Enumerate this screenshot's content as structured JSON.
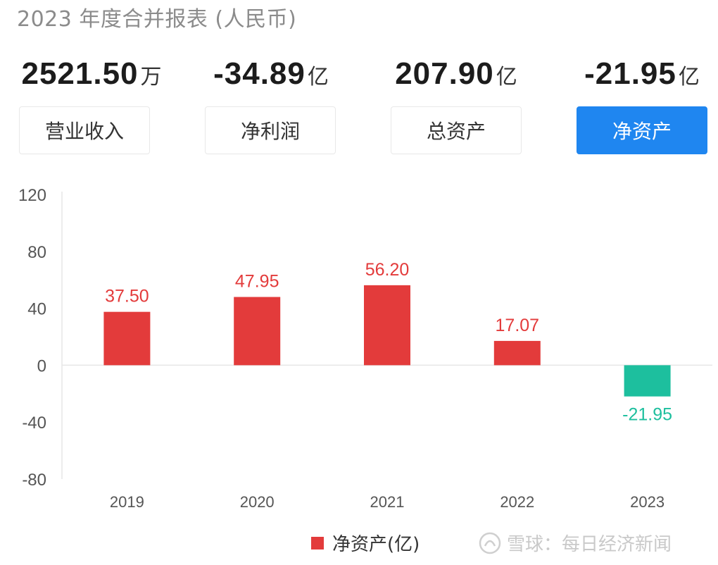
{
  "header": {
    "title": "2023 年度合并报表 (人民币)"
  },
  "metrics": [
    {
      "value": "2521.50",
      "unit": "万"
    },
    {
      "value": "-34.89",
      "unit": "亿"
    },
    {
      "value": "207.90",
      "unit": "亿"
    },
    {
      "value": "-21.95",
      "unit": "亿"
    }
  ],
  "tabs": [
    {
      "label": "营业收入",
      "active": false
    },
    {
      "label": "净利润",
      "active": false
    },
    {
      "label": "总资产",
      "active": false
    },
    {
      "label": "净资产",
      "active": true
    }
  ],
  "colors": {
    "positive": "#e33b3b",
    "negative": "#1dbf9e",
    "accent": "#1f86f0",
    "axis_text": "#555555"
  },
  "chart_data": {
    "type": "bar",
    "categories": [
      "2019",
      "2020",
      "2021",
      "2022",
      "2023"
    ],
    "series": [
      {
        "name": "净资产(亿)",
        "values": [
          37.5,
          47.95,
          56.2,
          17.07,
          -21.95
        ]
      }
    ],
    "value_labels": [
      "37.50",
      "47.95",
      "56.20",
      "17.07",
      "-21.95"
    ],
    "yticks": [
      "120",
      "80",
      "40",
      "0",
      "-40",
      "-80"
    ],
    "ylim": [
      -80,
      120
    ],
    "grid": false
  },
  "legend": {
    "label": "净资产(亿)"
  },
  "watermark": {
    "text": "雪球：每日经济新闻"
  }
}
